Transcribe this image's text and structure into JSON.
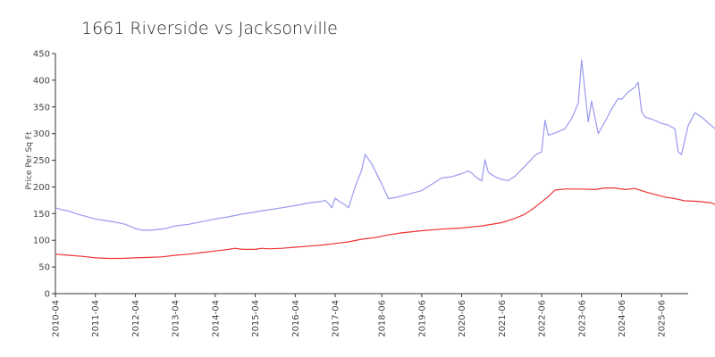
{
  "chart_data": {
    "type": "line",
    "title": "1661 Riverside vs Jacksonville",
    "xlabel": "",
    "ylabel": "Price Per Sq Ft",
    "ylim": [
      0,
      450
    ],
    "yticks": [
      0,
      50,
      100,
      150,
      200,
      250,
      300,
      350,
      400,
      450
    ],
    "xlim": [
      "2010-04",
      "2026-02"
    ],
    "xticks": [
      "2010-04",
      "2011-04",
      "2012-04",
      "2013-04",
      "2014-04",
      "2015-04",
      "2016-04",
      "2017-04",
      "2018-06",
      "2019-06",
      "2020-06",
      "2021-06",
      "2022-06",
      "2023-06",
      "2024-06",
      "2025-06"
    ],
    "grid": false,
    "legend": "none",
    "series": [
      {
        "name": "",
        "color": "#9999ee",
        "points": [
          [
            "2010-04",
            161
          ],
          [
            "2010-06",
            157
          ],
          [
            "2010-08",
            155
          ],
          [
            "2010-10",
            150
          ],
          [
            "2011-01",
            145
          ],
          [
            "2011-04",
            140
          ],
          [
            "2011-07",
            137
          ],
          [
            "2011-10",
            134
          ],
          [
            "2012-01",
            130
          ],
          [
            "2012-04",
            122
          ],
          [
            "2012-06",
            119
          ],
          [
            "2012-09",
            119
          ],
          [
            "2013-01",
            122
          ],
          [
            "2013-04",
            127
          ],
          [
            "2013-08",
            130
          ],
          [
            "2013-12",
            135
          ],
          [
            "2014-04",
            140
          ],
          [
            "2014-08",
            144
          ],
          [
            "2014-12",
            149
          ],
          [
            "2015-04",
            153
          ],
          [
            "2015-08",
            157
          ],
          [
            "2015-12",
            161
          ],
          [
            "2016-04",
            165
          ],
          [
            "2016-08",
            170
          ],
          [
            "2016-12",
            173
          ],
          [
            "2017-01",
            175
          ],
          [
            "2017-02",
            169
          ],
          [
            "2017-03",
            161
          ],
          [
            "2017-04",
            179
          ],
          [
            "2017-05",
            174
          ],
          [
            "2017-06",
            170
          ],
          [
            "2017-07",
            166
          ],
          [
            "2017-08",
            161
          ],
          [
            "2017-10",
            200
          ],
          [
            "2017-12",
            232
          ],
          [
            "2018-01",
            261
          ],
          [
            "2018-03",
            243
          ],
          [
            "2018-06",
            205
          ],
          [
            "2018-08",
            178
          ],
          [
            "2018-10",
            180
          ],
          [
            "2018-12",
            183
          ],
          [
            "2019-03",
            188
          ],
          [
            "2019-06",
            193
          ],
          [
            "2019-09",
            205
          ],
          [
            "2019-12",
            217
          ],
          [
            "2020-03",
            219
          ],
          [
            "2020-06",
            225
          ],
          [
            "2020-08",
            230
          ],
          [
            "2020-09",
            226
          ],
          [
            "2020-10",
            220
          ],
          [
            "2020-12",
            211
          ],
          [
            "2021-01",
            251
          ],
          [
            "2021-02",
            227
          ],
          [
            "2021-04",
            219
          ],
          [
            "2021-06",
            214
          ],
          [
            "2021-08",
            212
          ],
          [
            "2021-10",
            220
          ],
          [
            "2022-01",
            239
          ],
          [
            "2022-04",
            259
          ],
          [
            "2022-05",
            263
          ],
          [
            "2022-06",
            265
          ],
          [
            "2022-07",
            325
          ],
          [
            "2022-08",
            297
          ],
          [
            "2022-10",
            301
          ],
          [
            "2023-01",
            309
          ],
          [
            "2023-03",
            328
          ],
          [
            "2023-05",
            357
          ],
          [
            "2023-06",
            438
          ],
          [
            "2023-08",
            322
          ],
          [
            "2023-09",
            361
          ],
          [
            "2023-11",
            300
          ],
          [
            "2024-01",
            322
          ],
          [
            "2024-03",
            346
          ],
          [
            "2024-05",
            366
          ],
          [
            "2024-06",
            364
          ],
          [
            "2024-08",
            378
          ],
          [
            "2024-10",
            387
          ],
          [
            "2024-11",
            396
          ],
          [
            "2024-12",
            342
          ],
          [
            "2025-01",
            331
          ],
          [
            "2025-03",
            327
          ],
          [
            "2025-05",
            322
          ],
          [
            "2025-06",
            319
          ],
          [
            "2025-08",
            316
          ],
          [
            "2025-10",
            309
          ],
          [
            "2025-11",
            266
          ],
          [
            "2025-12",
            261
          ],
          [
            "2026-02",
            315
          ],
          [
            "2026-04",
            339
          ],
          [
            "2026-06",
            331
          ],
          [
            "2026-08",
            320
          ],
          [
            "2026-10",
            310
          ],
          [
            "2026-12",
            291
          ]
        ]
      },
      {
        "name": "",
        "color": "#ee3333",
        "points": [
          [
            "2010-04",
            74
          ],
          [
            "2010-08",
            72
          ],
          [
            "2010-12",
            70
          ],
          [
            "2011-04",
            67
          ],
          [
            "2011-08",
            66
          ],
          [
            "2011-12",
            66
          ],
          [
            "2012-04",
            67
          ],
          [
            "2012-08",
            68
          ],
          [
            "2012-12",
            69
          ],
          [
            "2013-04",
            72
          ],
          [
            "2013-08",
            74
          ],
          [
            "2013-12",
            77
          ],
          [
            "2014-04",
            80
          ],
          [
            "2014-08",
            83
          ],
          [
            "2014-10",
            85
          ],
          [
            "2014-12",
            83
          ],
          [
            "2015-04",
            83
          ],
          [
            "2015-06",
            85
          ],
          [
            "2015-08",
            84
          ],
          [
            "2015-12",
            85
          ],
          [
            "2016-04",
            87
          ],
          [
            "2016-08",
            89
          ],
          [
            "2016-12",
            91
          ],
          [
            "2017-04",
            94
          ],
          [
            "2017-08",
            97
          ],
          [
            "2017-12",
            102
          ],
          [
            "2018-04",
            105
          ],
          [
            "2018-08",
            110
          ],
          [
            "2018-12",
            114
          ],
          [
            "2019-06",
            118
          ],
          [
            "2019-12",
            121
          ],
          [
            "2020-06",
            123
          ],
          [
            "2020-12",
            127
          ],
          [
            "2021-06",
            133
          ],
          [
            "2021-10",
            141
          ],
          [
            "2022-01",
            149
          ],
          [
            "2022-04",
            162
          ],
          [
            "2022-06",
            172
          ],
          [
            "2022-08",
            182
          ],
          [
            "2022-10",
            194
          ],
          [
            "2023-01",
            196
          ],
          [
            "2023-06",
            196
          ],
          [
            "2023-10",
            195
          ],
          [
            "2024-01",
            198
          ],
          [
            "2024-04",
            198
          ],
          [
            "2024-07",
            195
          ],
          [
            "2024-10",
            197
          ],
          [
            "2025-01",
            191
          ],
          [
            "2025-04",
            186
          ],
          [
            "2025-07",
            181
          ],
          [
            "2025-10",
            178
          ],
          [
            "2026-01",
            174
          ],
          [
            "2026-05",
            173
          ],
          [
            "2026-09",
            170
          ],
          [
            "2026-11",
            165
          ],
          [
            "2026-12",
            163
          ]
        ]
      }
    ]
  }
}
